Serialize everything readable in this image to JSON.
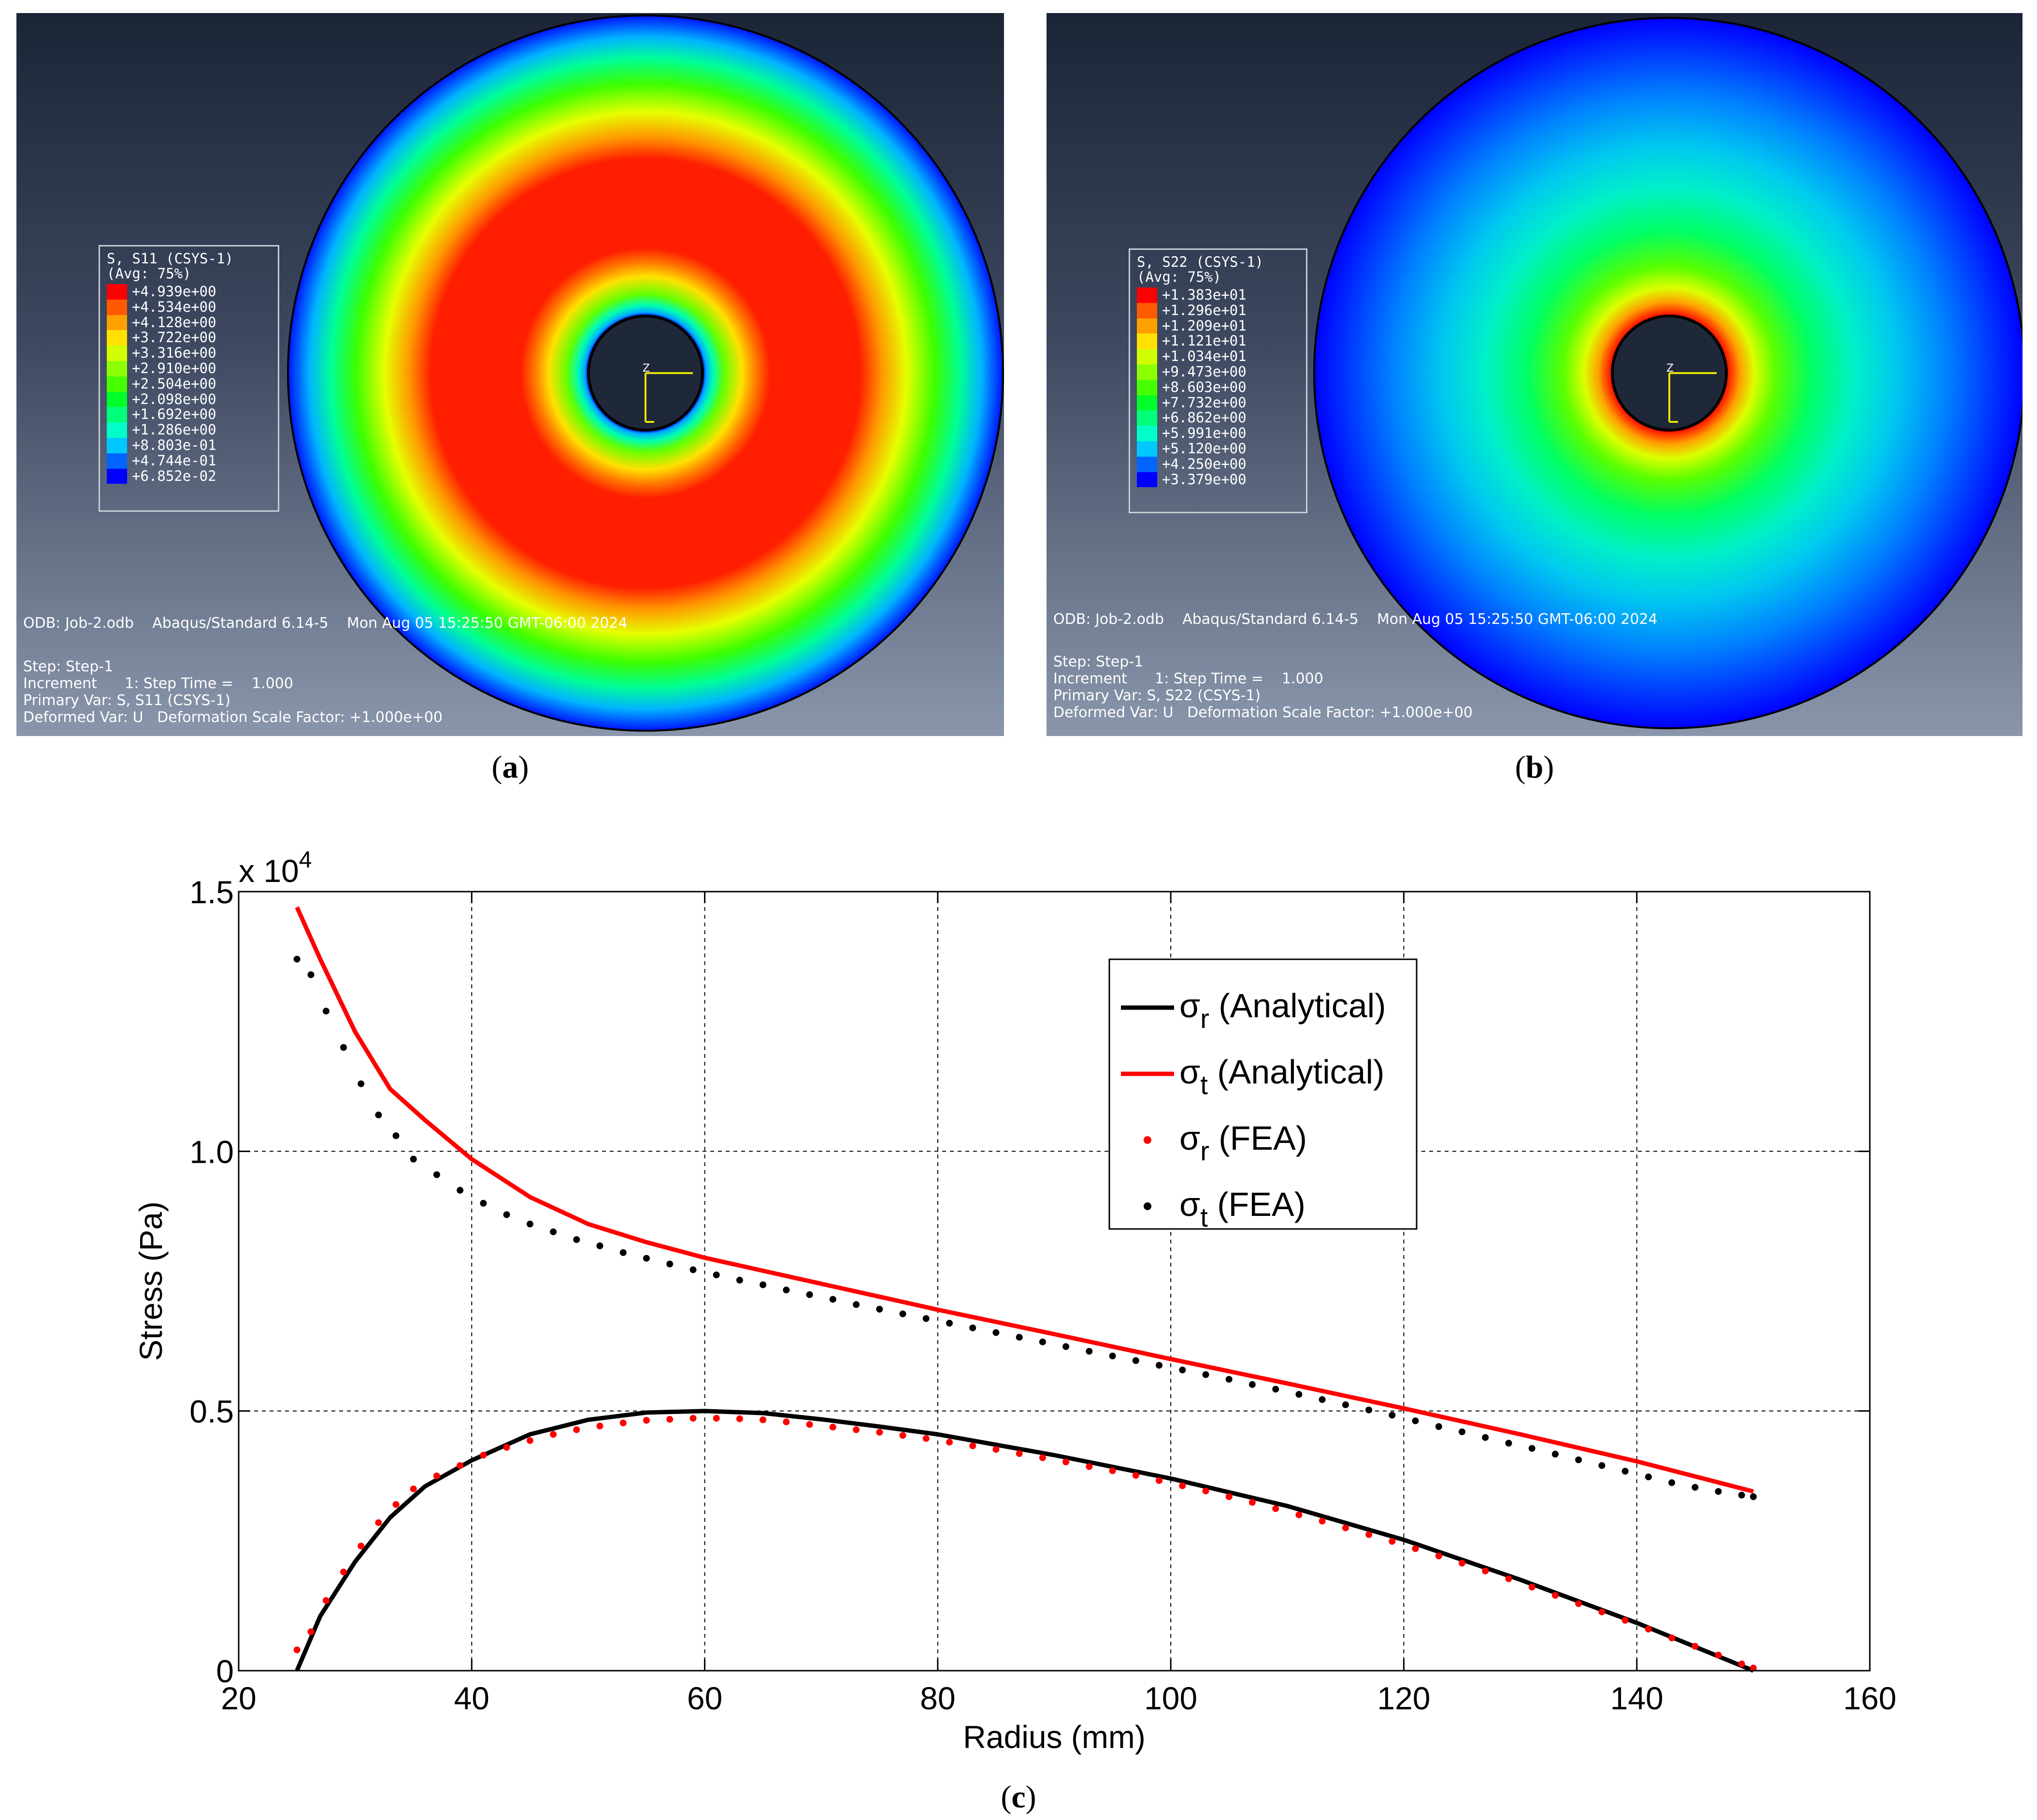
{
  "panels": [
    {
      "id": "a",
      "caption": "a",
      "legend_title": "S, S11 (CSYS-1)",
      "legend_avg": "(Avg: 75%)",
      "legend_values": [
        "+4.939e+00",
        "+4.534e+00",
        "+4.128e+00",
        "+3.722e+00",
        "+3.316e+00",
        "+2.910e+00",
        "+2.504e+00",
        "+2.098e+00",
        "+1.692e+00",
        "+1.286e+00",
        "+8.803e-01",
        "+4.744e-01",
        "+6.852e-02"
      ],
      "odb_line": "ODB: Job-2.odb    Abaqus/Standard 6.14-5    Mon Aug 05 15:25:50 GMT-06:00 2024",
      "step_line": "Step: Step-1",
      "increment_line": "Increment      1: Step Time =    1.000",
      "primary_line": "Primary Var: S, S11 (CSYS-1)",
      "deformed_line": "Deformed Var: U   Deformation Scale Factor: +1.000e+00",
      "field": "radial"
    },
    {
      "id": "b",
      "caption": "b",
      "legend_title": "S, S22 (CSYS-1)",
      "legend_avg": "(Avg: 75%)",
      "legend_values": [
        "+1.383e+01",
        "+1.296e+01",
        "+1.209e+01",
        "+1.121e+01",
        "+1.034e+01",
        "+9.473e+00",
        "+8.603e+00",
        "+7.732e+00",
        "+6.862e+00",
        "+5.991e+00",
        "+5.120e+00",
        "+4.250e+00",
        "+3.379e+00"
      ],
      "odb_line": "ODB: Job-2.odb    Abaqus/Standard 6.14-5    Mon Aug 05 15:25:50 GMT-06:00 2024",
      "step_line": "Step: Step-1",
      "increment_line": "Increment      1: Step Time =    1.000",
      "primary_line": "Primary Var: S, S22 (CSYS-1)",
      "deformed_line": "Deformed Var: U   Deformation Scale Factor: +1.000e+00",
      "field": "tangential"
    }
  ],
  "triad_label": "Z",
  "legend_colors": [
    "#ff0000",
    "#ff5a00",
    "#ffa000",
    "#ffe100",
    "#d2ff00",
    "#8cff00",
    "#46ff00",
    "#00ff28",
    "#00ff78",
    "#00ffc8",
    "#00c8ff",
    "#0064ff",
    "#0000ff"
  ],
  "chart_data": {
    "type": "line",
    "caption": "c",
    "xlabel": "Radius (mm)",
    "ylabel": "Stress (Pa)",
    "y_multiplier": "x 10",
    "y_multiplier_exp": "4",
    "xlim": [
      20,
      160
    ],
    "ylim": [
      0,
      1.5
    ],
    "xticks": [
      20,
      40,
      60,
      80,
      100,
      120,
      140,
      160
    ],
    "xtick_labels": [
      "20",
      "40",
      "60",
      "80",
      "100",
      "120",
      "140",
      "160"
    ],
    "yticks": [
      0,
      0.5,
      1.0,
      1.5
    ],
    "ytick_labels": [
      "0",
      "0.5",
      "1.0",
      "1.5"
    ],
    "grid": true,
    "legend_position": "top-right",
    "series": [
      {
        "name": "σ",
        "sub": "r",
        "suffix": " (Analytical)",
        "style": "line",
        "color": "#000000",
        "x": [
          25,
          27,
          30,
          33,
          36,
          40,
          45,
          50,
          55,
          60,
          65,
          70,
          75,
          80,
          90,
          100,
          110,
          120,
          130,
          140,
          150
        ],
        "y": [
          0,
          0.105,
          0.21,
          0.295,
          0.355,
          0.405,
          0.455,
          0.483,
          0.497,
          0.5,
          0.496,
          0.484,
          0.47,
          0.455,
          0.415,
          0.37,
          0.317,
          0.252,
          0.175,
          0.092,
          0
        ]
      },
      {
        "name": "σ",
        "sub": "t",
        "suffix": " (Analytical)",
        "style": "line",
        "color": "#ff0000",
        "x": [
          25,
          27,
          30,
          33,
          36,
          40,
          45,
          50,
          55,
          60,
          65,
          70,
          75,
          80,
          90,
          100,
          110,
          120,
          130,
          140,
          150
        ],
        "y": [
          1.47,
          1.37,
          1.23,
          1.12,
          1.06,
          0.985,
          0.912,
          0.86,
          0.825,
          0.795,
          0.77,
          0.745,
          0.72,
          0.695,
          0.648,
          0.6,
          0.553,
          0.505,
          0.455,
          0.403,
          0.345
        ]
      },
      {
        "name": "σ",
        "sub": "r",
        "suffix": " (FEA)",
        "style": "dots",
        "color": "#ff0000",
        "x": [
          25,
          26.2,
          27.5,
          29,
          30.5,
          32,
          33.5,
          35,
          37,
          39,
          41,
          43,
          45,
          47,
          49,
          51,
          53,
          55,
          57,
          59,
          61,
          63,
          65,
          67,
          69,
          71,
          73,
          75,
          77,
          79,
          81,
          83,
          85,
          87,
          89,
          91,
          93,
          95,
          97,
          99,
          101,
          103,
          105,
          107,
          109,
          111,
          113,
          115,
          117,
          119,
          121,
          123,
          125,
          127,
          129,
          131,
          133,
          135,
          137,
          139,
          141,
          143,
          145,
          147,
          149,
          150
        ],
        "y": [
          0.04,
          0.075,
          0.135,
          0.19,
          0.24,
          0.285,
          0.32,
          0.35,
          0.375,
          0.395,
          0.415,
          0.43,
          0.443,
          0.455,
          0.464,
          0.471,
          0.477,
          0.482,
          0.484,
          0.486,
          0.486,
          0.485,
          0.483,
          0.479,
          0.474,
          0.469,
          0.464,
          0.459,
          0.453,
          0.447,
          0.44,
          0.433,
          0.426,
          0.418,
          0.41,
          0.402,
          0.393,
          0.385,
          0.376,
          0.366,
          0.356,
          0.346,
          0.335,
          0.324,
          0.312,
          0.3,
          0.288,
          0.275,
          0.262,
          0.249,
          0.235,
          0.221,
          0.207,
          0.192,
          0.177,
          0.161,
          0.145,
          0.129,
          0.113,
          0.097,
          0.08,
          0.063,
          0.047,
          0.03,
          0.013,
          0.005
        ]
      },
      {
        "name": "σ",
        "sub": "t",
        "suffix": " (FEA)",
        "style": "dots",
        "color": "#000000",
        "x": [
          25,
          26.2,
          27.5,
          29,
          30.5,
          32,
          33.5,
          35,
          37,
          39,
          41,
          43,
          45,
          47,
          49,
          51,
          53,
          55,
          57,
          59,
          61,
          63,
          65,
          67,
          69,
          71,
          73,
          75,
          77,
          79,
          81,
          83,
          85,
          87,
          89,
          91,
          93,
          95,
          97,
          99,
          101,
          103,
          105,
          107,
          109,
          111,
          113,
          115,
          117,
          119,
          121,
          123,
          125,
          127,
          129,
          131,
          133,
          135,
          137,
          139,
          141,
          143,
          145,
          147,
          149,
          150
        ],
        "y": [
          1.37,
          1.34,
          1.27,
          1.2,
          1.13,
          1.07,
          1.03,
          0.985,
          0.955,
          0.925,
          0.9,
          0.878,
          0.86,
          0.845,
          0.83,
          0.818,
          0.805,
          0.794,
          0.783,
          0.772,
          0.762,
          0.752,
          0.743,
          0.733,
          0.724,
          0.715,
          0.705,
          0.696,
          0.687,
          0.678,
          0.669,
          0.66,
          0.651,
          0.642,
          0.633,
          0.624,
          0.615,
          0.606,
          0.597,
          0.588,
          0.579,
          0.57,
          0.561,
          0.551,
          0.542,
          0.532,
          0.522,
          0.512,
          0.502,
          0.492,
          0.481,
          0.47,
          0.46,
          0.449,
          0.438,
          0.428,
          0.417,
          0.406,
          0.395,
          0.384,
          0.373,
          0.362,
          0.353,
          0.345,
          0.338,
          0.335
        ]
      }
    ]
  }
}
